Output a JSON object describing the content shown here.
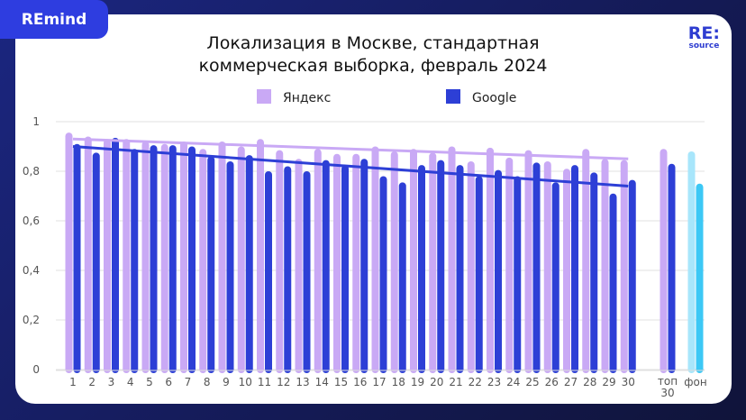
{
  "brand": {
    "badge": "REmind",
    "logo_main": "RE:",
    "logo_sub": "source"
  },
  "chart_data": {
    "type": "bar",
    "title": [
      "Локализация в Москве, стандартная",
      "коммерческая выборка, февраль 2024"
    ],
    "categories": [
      "1",
      "2",
      "3",
      "4",
      "5",
      "6",
      "7",
      "8",
      "9",
      "10",
      "11",
      "12",
      "13",
      "14",
      "15",
      "16",
      "17",
      "18",
      "19",
      "20",
      "21",
      "22",
      "23",
      "24",
      "25",
      "26",
      "27",
      "28",
      "29",
      "30",
      "топ 30",
      "фон"
    ],
    "ylim": [
      0,
      1
    ],
    "yticks": [
      "0",
      "0,2",
      "0,4",
      "0,6",
      "0,8",
      "1"
    ],
    "grid": true,
    "legend_position": "top",
    "series": [
      {
        "name": "Яндекс",
        "color": "#c9a9f5",
        "background_color": "#a8e6fb",
        "values": [
          0.956,
          0.94,
          0.93,
          0.93,
          0.92,
          0.91,
          0.92,
          0.89,
          0.92,
          0.9,
          0.93,
          0.885,
          0.85,
          0.89,
          0.87,
          0.87,
          0.9,
          0.88,
          0.89,
          0.875,
          0.9,
          0.84,
          0.895,
          0.855,
          0.885,
          0.84,
          0.81,
          0.89,
          0.85,
          0.845,
          0.89,
          0.88
        ],
        "trend": [
          0.93,
          0.85
        ]
      },
      {
        "name": "Google",
        "color": "#2d3fd6",
        "background_color": "#3cc8f5",
        "values": [
          0.91,
          0.875,
          0.935,
          0.89,
          0.905,
          0.905,
          0.9,
          0.86,
          0.84,
          0.865,
          0.8,
          0.82,
          0.8,
          0.845,
          0.825,
          0.85,
          0.78,
          0.755,
          0.825,
          0.845,
          0.825,
          0.78,
          0.805,
          0.78,
          0.835,
          0.755,
          0.825,
          0.795,
          0.71,
          0.765,
          0.83,
          0.75
        ],
        "trend": [
          0.9,
          0.74
        ]
      }
    ]
  }
}
